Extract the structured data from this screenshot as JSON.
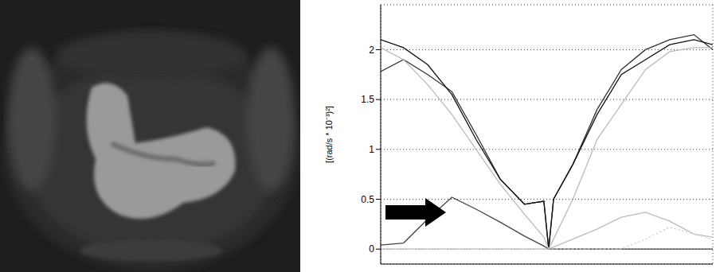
{
  "chart_data": {
    "type": "line",
    "y_label": "[(rad/s * 10⁻³)²]",
    "x": [
      0.53,
      1,
      1.5,
      2,
      2.5,
      3,
      3.5,
      3.9,
      4,
      4.1,
      4.5,
      5,
      5.5,
      6,
      6.5,
      7,
      7.39
    ],
    "xlim": [
      0.53,
      7.39
    ],
    "xticks": [
      1,
      2,
      3,
      4,
      5,
      6,
      7
    ],
    "ylim": [
      -0.15,
      2.45
    ],
    "yticks": [
      0,
      0.5,
      1,
      1.5,
      2
    ],
    "grid": true,
    "tick_labels": "y",
    "series": [
      {
        "color": "#333333",
        "line_style": "solid",
        "values": [
          1.78,
          1.9,
          1.75,
          1.58,
          1.15,
          0.7,
          0.45,
          0.48,
          0,
          0.5,
          0.85,
          1.4,
          1.8,
          2.0,
          2.1,
          2.15,
          2.0
        ]
      },
      {
        "color": "#111111",
        "line_style": "solid",
        "values": [
          2.1,
          2.02,
          1.85,
          1.55,
          1.1,
          0.7,
          0.45,
          0.48,
          0,
          0.5,
          0.85,
          1.35,
          1.75,
          1.9,
          2.05,
          2.1,
          2.05
        ]
      },
      {
        "color": "#bbbbbb",
        "line_style": "solid",
        "values": [
          2.02,
          1.9,
          1.65,
          1.35,
          1.0,
          0.65,
          0.35,
          0.12,
          0,
          0.1,
          0.5,
          1.1,
          1.45,
          1.8,
          1.98,
          2.02,
          2.02
        ]
      },
      {
        "color": "#444444",
        "line_style": "solid",
        "values": [
          0.04,
          0.06,
          0.3,
          0.52,
          0.4,
          0.27,
          0.13,
          0.03,
          0,
          0,
          0,
          0,
          0,
          0,
          0,
          0,
          0
        ]
      },
      {
        "color": "#bbbbbb",
        "line_style": "solid",
        "values": [
          0,
          0,
          0,
          0,
          0,
          0,
          0,
          0,
          0,
          0.02,
          0.1,
          0.2,
          0.32,
          0.37,
          0.28,
          0.15,
          0.12
        ]
      },
      {
        "color": "#cccccc",
        "line_style": "dotted",
        "values": [
          0,
          0,
          0,
          0,
          0,
          0,
          0,
          0,
          0,
          0,
          0,
          0,
          0,
          0.1,
          0.22,
          0.15,
          0.1
        ]
      }
    ]
  }
}
